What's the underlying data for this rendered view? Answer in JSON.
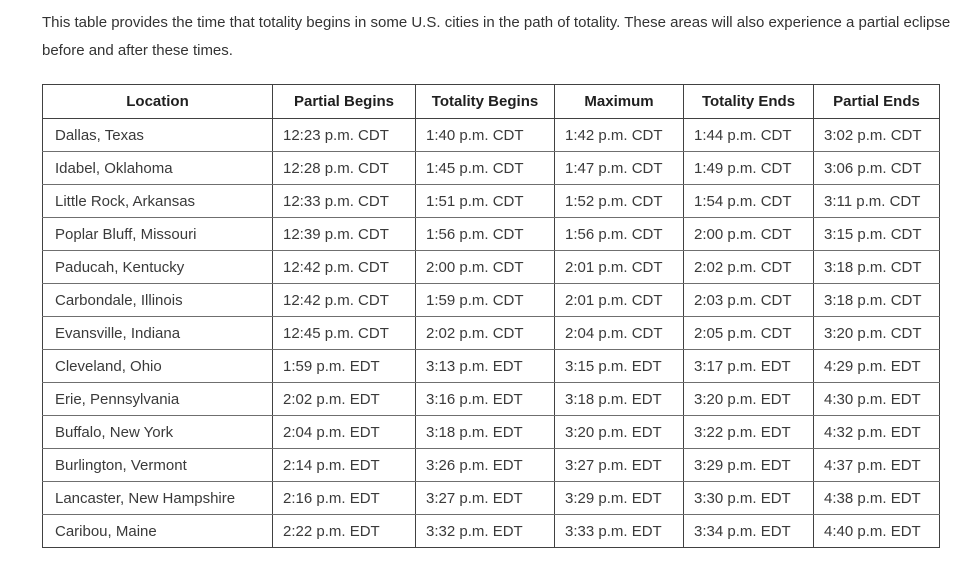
{
  "intro": {
    "text": "This table provides the time that totality begins in some U.S. cities in the path of totality. These areas will also experience a partial eclipse before and after these times."
  },
  "table": {
    "columns": [
      "Location",
      "Partial Begins",
      "Totality Begins",
      "Maximum",
      "Totality Ends",
      "Partial Ends"
    ],
    "rows": [
      [
        "Dallas, Texas",
        "12:23 p.m. CDT",
        "1:40 p.m. CDT",
        "1:42 p.m. CDT",
        "1:44 p.m. CDT",
        "3:02 p.m. CDT"
      ],
      [
        "Idabel, Oklahoma",
        "12:28 p.m. CDT",
        "1:45 p.m. CDT",
        "1:47 p.m. CDT",
        "1:49 p.m. CDT",
        "3:06 p.m. CDT"
      ],
      [
        "Little Rock, Arkansas",
        "12:33 p.m. CDT",
        "1:51 p.m. CDT",
        "1:52 p.m. CDT",
        "1:54 p.m. CDT",
        "3:11 p.m. CDT"
      ],
      [
        "Poplar Bluff, Missouri",
        "12:39 p.m. CDT",
        "1:56 p.m. CDT",
        "1:56 p.m. CDT",
        "2:00 p.m. CDT",
        "3:15 p.m. CDT"
      ],
      [
        "Paducah, Kentucky",
        "12:42 p.m. CDT",
        "2:00 p.m. CDT",
        "2:01 p.m. CDT",
        "2:02 p.m. CDT",
        "3:18 p.m. CDT"
      ],
      [
        "Carbondale, Illinois",
        "12:42 p.m. CDT",
        "1:59 p.m. CDT",
        "2:01 p.m. CDT",
        "2:03 p.m. CDT",
        "3:18 p.m. CDT"
      ],
      [
        "Evansville, Indiana",
        "12:45 p.m. CDT",
        "2:02 p.m. CDT",
        "2:04 p.m. CDT",
        "2:05 p.m. CDT",
        "3:20 p.m. CDT"
      ],
      [
        "Cleveland, Ohio",
        "1:59 p.m. EDT",
        "3:13 p.m. EDT",
        "3:15 p.m. EDT",
        "3:17 p.m. EDT",
        "4:29 p.m. EDT"
      ],
      [
        "Erie, Pennsylvania",
        "2:02 p.m. EDT",
        "3:16 p.m. EDT",
        "3:18 p.m. EDT",
        "3:20 p.m. EDT",
        "4:30 p.m. EDT"
      ],
      [
        "Buffalo, New York",
        "2:04 p.m. EDT",
        "3:18 p.m. EDT",
        "3:20 p.m. EDT",
        "3:22 p.m. EDT",
        "4:32 p.m. EDT"
      ],
      [
        "Burlington, Vermont",
        "2:14 p.m. EDT",
        "3:26 p.m. EDT",
        "3:27 p.m. EDT",
        "3:29 p.m. EDT",
        "4:37 p.m. EDT"
      ],
      [
        "Lancaster, New Hampshire",
        "2:16 p.m. EDT",
        "3:27 p.m. EDT",
        "3:29 p.m. EDT",
        "3:30 p.m. EDT",
        "4:38 p.m. EDT"
      ],
      [
        "Caribou, Maine",
        "2:22 p.m. EDT",
        "3:32 p.m. EDT",
        "3:33 p.m. EDT",
        "3:34 p.m. EDT",
        "4:40 p.m. EDT"
      ]
    ]
  },
  "colors": {
    "background": "#ffffff",
    "border_dark": "#414141",
    "row_divider": "#6f6f6f",
    "text": "#3a3a3a",
    "header_text": "#1f1f1f"
  }
}
